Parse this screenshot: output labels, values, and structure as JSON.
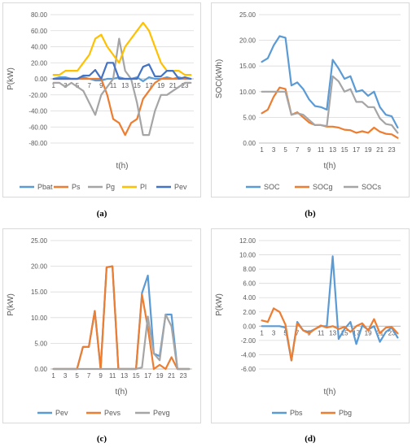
{
  "chart_data": [
    {
      "type": "line",
      "panel_label": "(a)",
      "xlabel": "t(h)",
      "ylabel": "P(kW)",
      "x": [
        1,
        2,
        3,
        4,
        5,
        6,
        7,
        8,
        9,
        10,
        11,
        12,
        13,
        14,
        15,
        16,
        17,
        18,
        19,
        20,
        21,
        22,
        23,
        24
      ],
      "x_tick_labels": [
        "1",
        "3",
        "5",
        "7",
        "9",
        "11",
        "13",
        "15",
        "17",
        "19",
        "21",
        "23"
      ],
      "ylim": [
        -80,
        80
      ],
      "y_ticks": [
        -80,
        -60,
        -40,
        -20,
        0,
        20,
        40,
        60,
        80
      ],
      "y_tick_labels": [
        "-80.00",
        "-60.00",
        "-40.00",
        "-20.00",
        "0.00",
        "20.00",
        "40.00",
        "60.00",
        "80.00"
      ],
      "legend_position": "bottom",
      "series": [
        {
          "name": "Pbat",
          "color": "#5b9bd5",
          "values": [
            0,
            2,
            2,
            0,
            0,
            2,
            0,
            -2,
            -2,
            0,
            0,
            2,
            0,
            0,
            2,
            -3,
            2,
            0,
            0,
            2,
            0,
            2,
            0,
            0
          ]
        },
        {
          "name": "Ps",
          "color": "#ed7d31",
          "values": [
            0,
            0,
            0,
            0,
            0,
            0,
            0,
            0,
            0,
            -20,
            -50,
            -55,
            -70,
            -55,
            -50,
            -25,
            -15,
            -5,
            0,
            0,
            0,
            0,
            0,
            0
          ]
        },
        {
          "name": "Pg",
          "color": "#a5a5a5",
          "values": [
            -5,
            -5,
            -10,
            -5,
            -10,
            -15,
            -30,
            -45,
            -20,
            -10,
            0,
            50,
            10,
            0,
            -30,
            -70,
            -70,
            -40,
            -20,
            -20,
            -15,
            -10,
            -5,
            -5
          ]
        },
        {
          "name": "Pl",
          "color": "#ffc000",
          "values": [
            5,
            5,
            10,
            10,
            10,
            20,
            30,
            50,
            55,
            40,
            30,
            20,
            40,
            50,
            60,
            70,
            60,
            40,
            20,
            10,
            10,
            10,
            5,
            5
          ]
        },
        {
          "name": "Pev",
          "color": "#4472c4",
          "values": [
            0,
            0,
            0,
            0,
            0,
            4,
            4,
            11,
            0,
            20,
            20,
            0,
            0,
            0,
            0,
            15,
            18,
            3,
            3,
            10,
            10,
            0,
            2,
            0
          ]
        }
      ]
    },
    {
      "type": "line",
      "panel_label": "(b)",
      "xlabel": "t(h)",
      "ylabel": "SOC(kWh)",
      "x": [
        1,
        2,
        3,
        4,
        5,
        6,
        7,
        8,
        9,
        10,
        11,
        12,
        13,
        14,
        15,
        16,
        17,
        18,
        19,
        20,
        21,
        22,
        23,
        24
      ],
      "x_tick_labels": [
        "1",
        "3",
        "5",
        "7",
        "9",
        "11",
        "13",
        "15",
        "17",
        "19",
        "21",
        "23"
      ],
      "ylim": [
        0,
        25
      ],
      "y_ticks": [
        0,
        5,
        10,
        15,
        20,
        25
      ],
      "y_tick_labels": [
        "0.00",
        "5.00",
        "10.00",
        "15.00",
        "20.00",
        "25.00"
      ],
      "legend_position": "bottom",
      "series": [
        {
          "name": "SOC",
          "color": "#5b9bd5",
          "values": [
            15.8,
            16.5,
            19,
            20.8,
            20.5,
            11.2,
            11.8,
            10.5,
            8.5,
            7.2,
            7,
            6.5,
            16.2,
            14.5,
            12.5,
            13,
            10,
            10.3,
            9.2,
            10,
            7,
            5.5,
            5.2,
            3
          ]
        },
        {
          "name": "SOCg",
          "color": "#ed7d31",
          "values": [
            5.8,
            6.5,
            9,
            10.8,
            10.5,
            5.5,
            6,
            5,
            4,
            3.5,
            3.5,
            3.2,
            3.2,
            3,
            2.6,
            2.5,
            2,
            2.3,
            2,
            3,
            2.2,
            1.8,
            1.7,
            1
          ]
        },
        {
          "name": "SOCs",
          "color": "#a5a5a5",
          "values": [
            10,
            10,
            10,
            10,
            10,
            5.5,
            5.8,
            5.5,
            4.5,
            3.5,
            3.5,
            3.3,
            13,
            12,
            10,
            10.5,
            8,
            8,
            7,
            7,
            4.8,
            3.7,
            3.5,
            2
          ]
        }
      ]
    },
    {
      "type": "line",
      "panel_label": "(c)",
      "xlabel": "t(h)",
      "ylabel": "P(kW)",
      "x": [
        1,
        2,
        3,
        4,
        5,
        6,
        7,
        8,
        9,
        10,
        11,
        12,
        13,
        14,
        15,
        16,
        17,
        18,
        19,
        20,
        21,
        22,
        23,
        24
      ],
      "x_tick_labels": [
        "1",
        "3",
        "5",
        "7",
        "9",
        "11",
        "13",
        "15",
        "17",
        "19",
        "21",
        "23"
      ],
      "ylim": [
        0,
        25
      ],
      "y_ticks": [
        0,
        5,
        10,
        15,
        20,
        25
      ],
      "y_tick_labels": [
        "0.00",
        "5.00",
        "10.00",
        "15.00",
        "20.00",
        "25.00"
      ],
      "legend_position": "bottom",
      "series": [
        {
          "name": "Pev",
          "color": "#5b9bd5",
          "values": [
            0,
            0,
            0,
            0,
            0,
            4.3,
            4.3,
            11.3,
            0,
            19.8,
            20,
            0,
            0,
            0,
            0,
            14.8,
            18.2,
            3,
            2.5,
            10.6,
            10.6,
            0,
            0,
            0
          ]
        },
        {
          "name": "Pevs",
          "color": "#ed7d31",
          "values": [
            0,
            0,
            0,
            0,
            0,
            4.3,
            4.3,
            11.3,
            0,
            19.8,
            20,
            0,
            0,
            0,
            0,
            14.5,
            8,
            0,
            0.8,
            0,
            2.3,
            0,
            0,
            0
          ]
        },
        {
          "name": "Pevg",
          "color": "#a5a5a5",
          "values": [
            0,
            0,
            0,
            0,
            0,
            0,
            0,
            0,
            0,
            0,
            0,
            0,
            0,
            0,
            0,
            0.3,
            10.2,
            3,
            1.7,
            10.6,
            8.3,
            0,
            0,
            0
          ]
        }
      ]
    },
    {
      "type": "line",
      "panel_label": "(d)",
      "xlabel": "t(h)",
      "ylabel": "P(kW)",
      "x": [
        1,
        2,
        3,
        4,
        5,
        6,
        7,
        8,
        9,
        10,
        11,
        12,
        13,
        14,
        15,
        16,
        17,
        18,
        19,
        20,
        21,
        22,
        23,
        24
      ],
      "x_tick_labels": [
        "1",
        "3",
        "5",
        "7",
        "9",
        "11",
        "13",
        "15",
        "17",
        "19",
        "21",
        "23"
      ],
      "ylim": [
        -6,
        12
      ],
      "y_ticks": [
        -6,
        -4,
        -2,
        0,
        2,
        4,
        6,
        8,
        10,
        12
      ],
      "y_tick_labels": [
        "-6.00",
        "-4.00",
        "-2.00",
        "0.00",
        "2.00",
        "4.00",
        "6.00",
        "8.00",
        "10.00",
        "12.00"
      ],
      "legend_position": "bottom",
      "series": [
        {
          "name": "Pbs",
          "color": "#5b9bd5",
          "values": [
            0,
            0,
            0,
            0,
            -0.2,
            -4.8,
            0.6,
            -0.6,
            -0.8,
            -0.4,
            0,
            0,
            9.8,
            -1.8,
            -0.4,
            0.6,
            -2.5,
            0.1,
            -0.5,
            0,
            -2.2,
            -0.8,
            -0.2,
            -1.6
          ]
        },
        {
          "name": "Pbg",
          "color": "#ed7d31",
          "values": [
            0.8,
            0.6,
            2.5,
            2,
            0.2,
            -4.8,
            0.4,
            -0.6,
            -1,
            -0.4,
            0.1,
            -0.2,
            0,
            -0.4,
            -0.1,
            -0.8,
            0,
            0.4,
            -0.6,
            1,
            -1,
            -0.2,
            -0.1,
            -1
          ]
        }
      ]
    }
  ]
}
